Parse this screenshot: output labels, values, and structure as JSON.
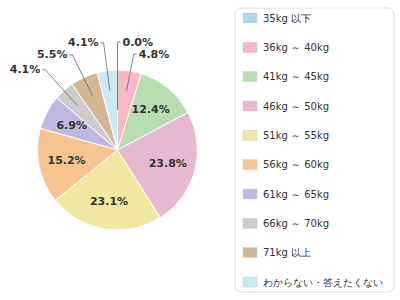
{
  "chart_data": {
    "type": "pie",
    "categories": [
      "35kg 以下",
      "36kg ～ 40kg",
      "41kg ～ 45kg",
      "46kg ～ 50kg",
      "51kg ～ 55kg",
      "56kg ～ 60kg",
      "61kg ～ 65kg",
      "66kg ～ 70kg",
      "71kg 以上",
      "わからない・答えたくない"
    ],
    "values": [
      0.0,
      4.8,
      12.4,
      23.8,
      23.1,
      15.2,
      6.9,
      4.1,
      5.5,
      4.1
    ],
    "value_labels": [
      "0.0%",
      "4.8%",
      "12.4%",
      "23.8%",
      "23.1%",
      "15.2%",
      "6.9%",
      "4.1%",
      "5.5%",
      "4.1%"
    ],
    "colors": [
      "#a8d8ea",
      "#f9b8c4",
      "#b8ddb0",
      "#e8b8d0",
      "#f0e8a0",
      "#f5c490",
      "#c0b8e0",
      "#cccccc",
      "#d4b896",
      "#cce8f4"
    ],
    "data_labels": true,
    "legend": "right"
  }
}
